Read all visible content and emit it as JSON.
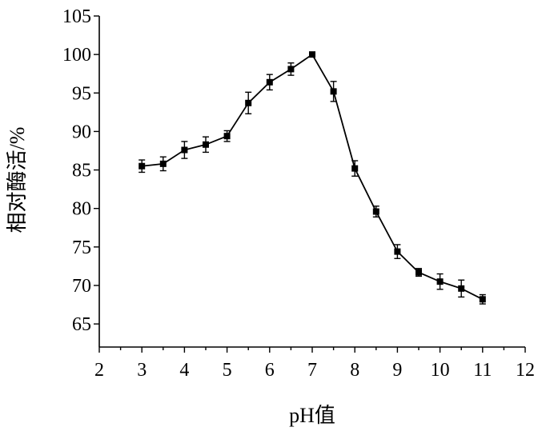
{
  "chart_data": {
    "type": "line",
    "xlabel": "pH值",
    "ylabel": "相对酶活/%",
    "xlim": [
      2,
      12
    ],
    "ylim": [
      62,
      105
    ],
    "xticks": [
      2,
      3,
      4,
      5,
      6,
      7,
      8,
      9,
      10,
      11,
      12
    ],
    "yticks": [
      65,
      70,
      75,
      80,
      85,
      90,
      95,
      100,
      105
    ],
    "grid": false,
    "series": [
      {
        "x": [
          3,
          3.5,
          4,
          4.5,
          5,
          5.5,
          6,
          6.5,
          7,
          7.5,
          8,
          8.5,
          9,
          9.5,
          10,
          10.5,
          11
        ],
        "values": [
          85.5,
          85.8,
          87.6,
          88.3,
          89.4,
          93.7,
          96.4,
          98.1,
          100.0,
          95.2,
          85.2,
          79.6,
          74.4,
          71.7,
          70.5,
          69.6,
          68.2
        ],
        "errors": [
          0.8,
          0.9,
          1.1,
          1.0,
          0.7,
          1.4,
          1.0,
          0.8,
          0.3,
          1.3,
          1.0,
          0.7,
          0.9,
          0.5,
          1.0,
          1.1,
          0.6
        ],
        "color": "#000000",
        "marker": "square"
      }
    ]
  }
}
